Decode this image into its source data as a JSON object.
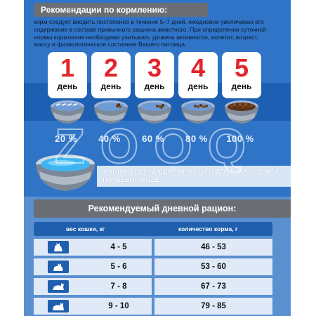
{
  "feeding": {
    "title": "Рекомендации по кормлению:",
    "intro": "корм следует вводить постепенно в течение 5–7 дней, ежедневно увеличивая его содержание в составе привычного рациона животного. При определении суточной нормы кормления необходимо учитывать уровень активности, аппетит, возраст, массу и физиологическое состояние Вашего питомца.",
    "steps": [
      {
        "number": "1",
        "label": "день",
        "percent": "20 %"
      },
      {
        "number": "2",
        "label": "день",
        "percent": "40 %"
      },
      {
        "number": "3",
        "label": "день",
        "percent": "60 %"
      },
      {
        "number": "4",
        "label": "день",
        "percent": "80 %"
      },
      {
        "number": "5",
        "label": "день",
        "percent": "100 %"
      }
    ],
    "water_note": "У КОШКИ ВСЕГДА ДОЛЖЕН БЫТЬ ДОСТУП К СВЕЖЕЙ ПИТЬЕВОЙ ВОДЕ."
  },
  "ration": {
    "title": "Рекомендуемый дневной рацион:",
    "columns": [
      "вес кошки, кг",
      "количество корма, г"
    ],
    "rows": [
      {
        "weight": "4 - 5",
        "amount": "46 - 53"
      },
      {
        "weight": "5 - 6",
        "amount": "53 - 60"
      },
      {
        "weight": "7 - 8",
        "amount": "67 - 73"
      },
      {
        "weight": "9 - 10",
        "amount": "79 - 85"
      }
    ]
  },
  "watermark": "ZOOQ",
  "colors": {
    "panel_blue": "#2f74c6",
    "step_number_red": "#e3242b",
    "header_gray": "#6b6e74",
    "table_header_blue": "#1f5fae",
    "row_fill": "#dfe9f7"
  },
  "icons": [
    "food-bowl-icon",
    "water-bowl-icon",
    "cat-icon"
  ]
}
